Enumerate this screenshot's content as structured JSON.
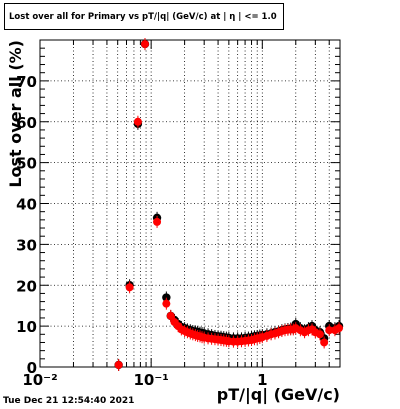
{
  "chart_data": {
    "type": "scatter",
    "title": "Lost over all for Primary vs pT/|q| (GeV/c) at | η | <= 1.0",
    "xlabel": "pT/|q| (GeV/c)",
    "ylabel": "Lost over all (%)",
    "xscale": "log",
    "xlim": [
      0.01,
      5
    ],
    "ylim": [
      0,
      80
    ],
    "grid": true,
    "x_tick_labels": [
      "10⁻²",
      "10⁻¹",
      "1"
    ],
    "y_tick_labels": [
      "0",
      "10",
      "20",
      "30",
      "40",
      "50",
      "60",
      "70"
    ],
    "series": [
      {
        "color": "#000000",
        "points": [
          [
            0.051,
            0.5
          ],
          [
            0.064,
            20
          ],
          [
            0.076,
            59.5
          ],
          [
            0.088,
            79
          ],
          [
            0.113,
            36.5
          ],
          [
            0.137,
            17
          ],
          [
            0.15,
            12.5
          ],
          [
            0.162,
            11.5
          ],
          [
            0.175,
            10.5
          ],
          [
            0.187,
            9.8
          ],
          [
            0.2,
            9.5
          ],
          [
            0.212,
            9.2
          ],
          [
            0.225,
            9
          ],
          [
            0.237,
            8.8
          ],
          [
            0.25,
            8.7
          ],
          [
            0.262,
            8.6
          ],
          [
            0.275,
            8.4
          ],
          [
            0.287,
            8.3
          ],
          [
            0.3,
            8.2
          ],
          [
            0.325,
            8
          ],
          [
            0.35,
            7.8
          ],
          [
            0.375,
            7.6
          ],
          [
            0.4,
            7.5
          ],
          [
            0.425,
            7.4
          ],
          [
            0.45,
            7.3
          ],
          [
            0.475,
            7.2
          ],
          [
            0.5,
            7.1
          ],
          [
            0.55,
            7
          ],
          [
            0.6,
            7
          ],
          [
            0.65,
            7
          ],
          [
            0.7,
            7.1
          ],
          [
            0.75,
            7.2
          ],
          [
            0.8,
            7.3
          ],
          [
            0.85,
            7.5
          ],
          [
            0.9,
            7.6
          ],
          [
            0.95,
            7.7
          ],
          [
            1.0,
            7.8
          ],
          [
            1.1,
            8
          ],
          [
            1.2,
            8.2
          ],
          [
            1.3,
            8.5
          ],
          [
            1.4,
            8.7
          ],
          [
            1.5,
            9
          ],
          [
            1.6,
            9.2
          ],
          [
            1.7,
            9.3
          ],
          [
            1.8,
            9.4
          ],
          [
            1.9,
            9.5
          ],
          [
            2.0,
            10.5
          ],
          [
            2.2,
            9.5
          ],
          [
            2.4,
            9
          ],
          [
            2.6,
            9.5
          ],
          [
            2.8,
            10
          ],
          [
            3.0,
            9
          ],
          [
            3.3,
            8.5
          ],
          [
            3.6,
            7
          ],
          [
            4.0,
            10
          ],
          [
            4.5,
            9.5
          ],
          [
            4.9,
            10
          ]
        ]
      },
      {
        "color": "#ff0000",
        "points": [
          [
            0.051,
            0.5
          ],
          [
            0.064,
            19.5
          ],
          [
            0.076,
            60
          ],
          [
            0.088,
            79
          ],
          [
            0.113,
            35.5
          ],
          [
            0.137,
            15.5
          ],
          [
            0.15,
            12.5
          ],
          [
            0.162,
            11
          ],
          [
            0.175,
            10
          ],
          [
            0.187,
            9.2
          ],
          [
            0.2,
            8.8
          ],
          [
            0.212,
            8.5
          ],
          [
            0.225,
            8.2
          ],
          [
            0.237,
            8
          ],
          [
            0.25,
            7.8
          ],
          [
            0.262,
            7.6
          ],
          [
            0.275,
            7.5
          ],
          [
            0.287,
            7.3
          ],
          [
            0.3,
            7.2
          ],
          [
            0.325,
            7
          ],
          [
            0.35,
            6.9
          ],
          [
            0.375,
            6.8
          ],
          [
            0.4,
            6.7
          ],
          [
            0.425,
            6.6
          ],
          [
            0.45,
            6.5
          ],
          [
            0.475,
            6.4
          ],
          [
            0.5,
            6.3
          ],
          [
            0.55,
            6.2
          ],
          [
            0.6,
            6.2
          ],
          [
            0.65,
            6.3
          ],
          [
            0.7,
            6.4
          ],
          [
            0.75,
            6.5
          ],
          [
            0.8,
            6.6
          ],
          [
            0.85,
            6.8
          ],
          [
            0.9,
            7
          ],
          [
            0.95,
            7.1
          ],
          [
            1.0,
            7.3
          ],
          [
            1.1,
            7.6
          ],
          [
            1.2,
            8
          ],
          [
            1.3,
            8.2
          ],
          [
            1.4,
            8.5
          ],
          [
            1.5,
            8.8
          ],
          [
            1.6,
            9
          ],
          [
            1.7,
            9.1
          ],
          [
            1.8,
            9.2
          ],
          [
            1.9,
            9.2
          ],
          [
            2.0,
            9.5
          ],
          [
            2.2,
            9
          ],
          [
            2.4,
            8.5
          ],
          [
            2.6,
            9
          ],
          [
            2.8,
            9.2
          ],
          [
            3.0,
            8.5
          ],
          [
            3.3,
            8
          ],
          [
            3.6,
            6
          ],
          [
            4.0,
            9
          ],
          [
            4.5,
            9
          ],
          [
            4.9,
            9.5
          ]
        ]
      }
    ]
  },
  "footer": {
    "timestamp": "Tue Dec 21 12:54:40 2021"
  }
}
